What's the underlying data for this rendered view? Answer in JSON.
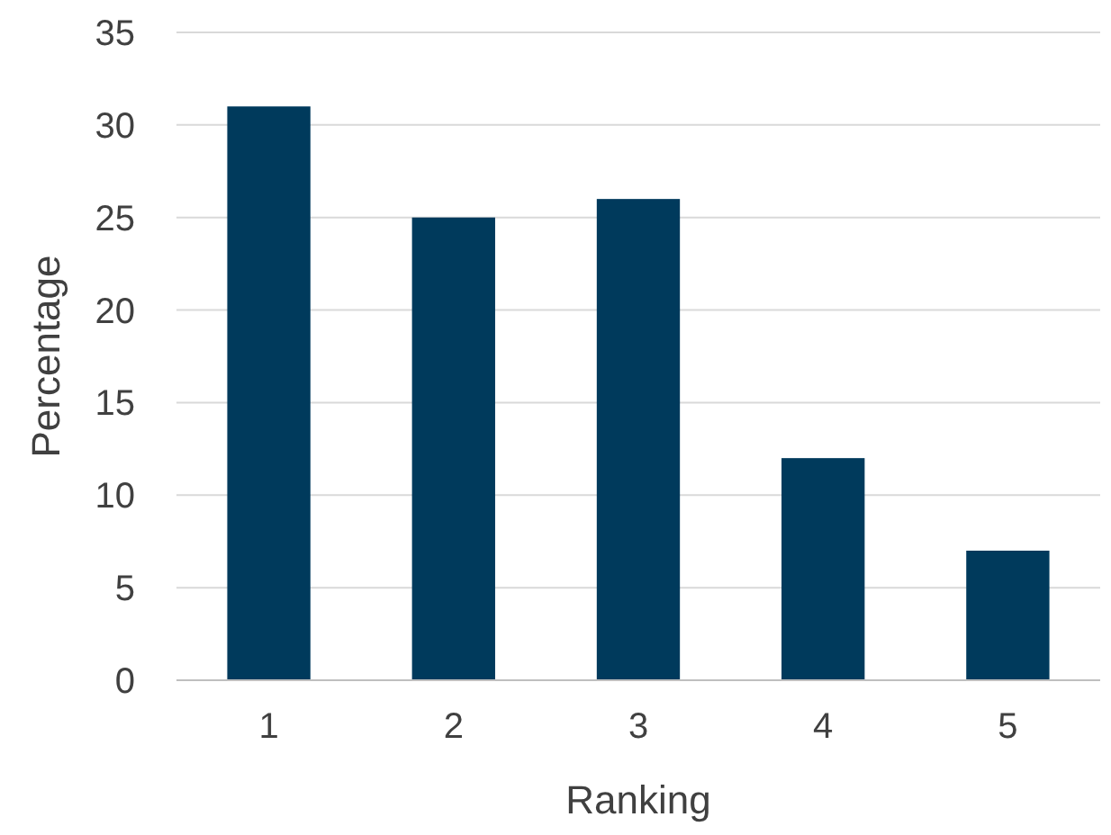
{
  "chart_data": {
    "type": "bar",
    "xlabel": "Ranking",
    "ylabel": "Percentage",
    "categories": [
      "1",
      "2",
      "3",
      "4",
      "5"
    ],
    "values": [
      31,
      25,
      26,
      12,
      7
    ],
    "color": "#003a5c",
    "ylim": [
      0,
      35
    ],
    "yticks": [
      0,
      5,
      10,
      15,
      20,
      25,
      30,
      35
    ],
    "grid": "y"
  }
}
